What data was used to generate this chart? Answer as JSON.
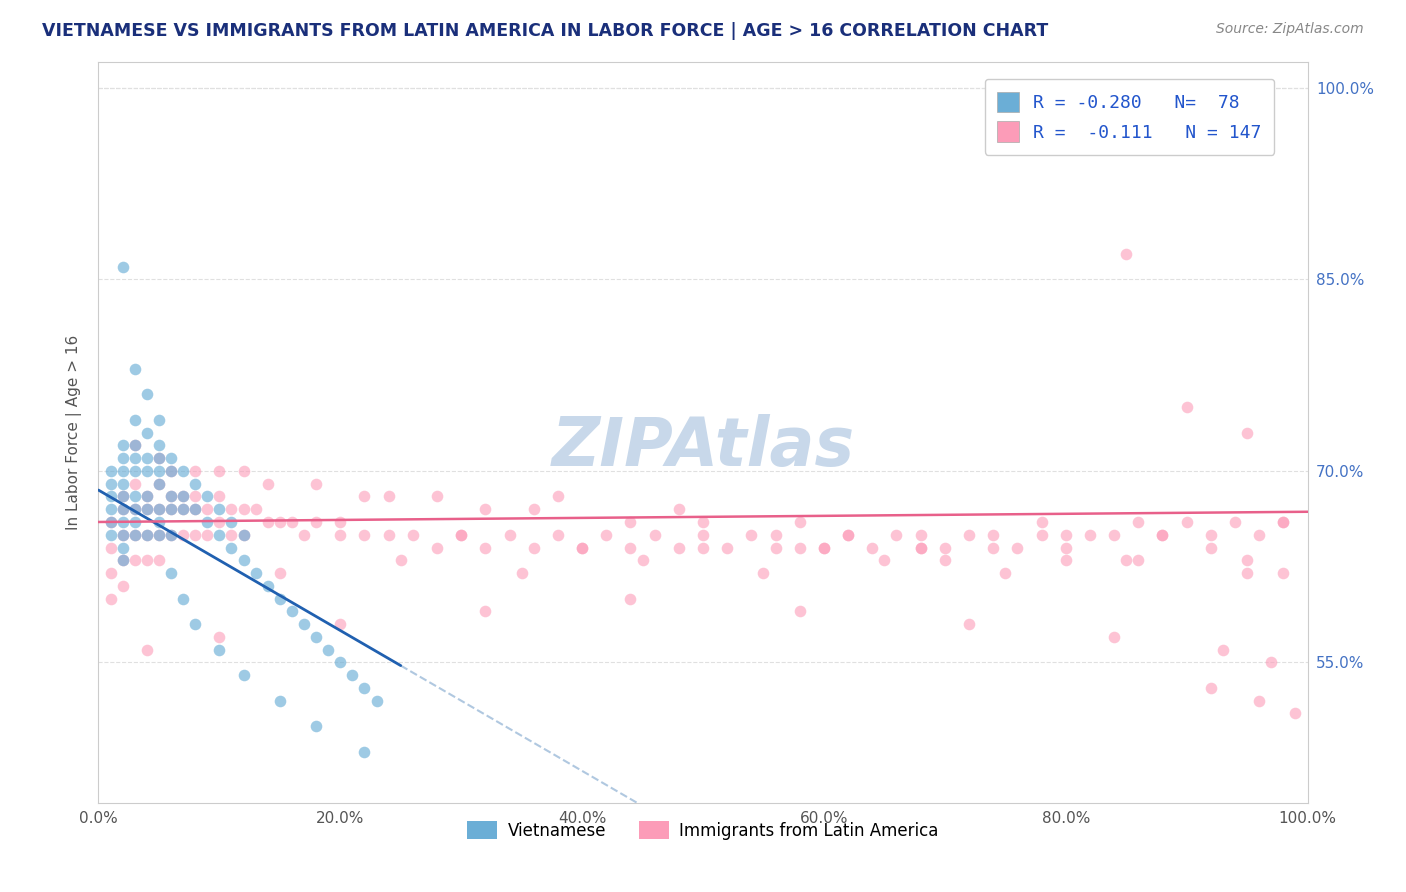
{
  "title": "VIETNAMESE VS IMMIGRANTS FROM LATIN AMERICA IN LABOR FORCE | AGE > 16 CORRELATION CHART",
  "source_text": "Source: ZipAtlas.com",
  "ylabel": "In Labor Force | Age > 16",
  "watermark": "ZIPAtlas",
  "xlim": [
    0.0,
    1.0
  ],
  "ylim": [
    0.44,
    1.02
  ],
  "xticks": [
    0.0,
    0.2,
    0.4,
    0.6,
    0.8,
    1.0
  ],
  "xtick_labels": [
    "0.0%",
    "20.0%",
    "40.0%",
    "60.0%",
    "80.0%",
    "100.0%"
  ],
  "yticks": [
    0.55,
    0.7,
    0.85,
    1.0
  ],
  "ytick_labels": [
    "55.0%",
    "70.0%",
    "85.0%",
    "100.0%"
  ],
  "legend1_label": "Vietnamese",
  "legend2_label": "Immigrants from Latin America",
  "R1": -0.28,
  "N1": 78,
  "R2": -0.111,
  "N2": 147,
  "blue_dot_color": "#6baed6",
  "pink_dot_color": "#fc9cb8",
  "blue_line_color": "#2060b0",
  "pink_line_color": "#e8608a",
  "dash_line_color": "#b0c8e0",
  "title_color": "#1a2f7a",
  "axis_color": "#cccccc",
  "grid_color": "#e0e0e0",
  "watermark_color": "#c8d8ea",
  "viet_x": [
    0.01,
    0.01,
    0.01,
    0.01,
    0.01,
    0.01,
    0.02,
    0.02,
    0.02,
    0.02,
    0.02,
    0.02,
    0.02,
    0.02,
    0.02,
    0.02,
    0.03,
    0.03,
    0.03,
    0.03,
    0.03,
    0.03,
    0.03,
    0.03,
    0.04,
    0.04,
    0.04,
    0.04,
    0.04,
    0.04,
    0.05,
    0.05,
    0.05,
    0.05,
    0.05,
    0.05,
    0.05,
    0.06,
    0.06,
    0.06,
    0.06,
    0.06,
    0.07,
    0.07,
    0.07,
    0.08,
    0.08,
    0.09,
    0.09,
    0.1,
    0.1,
    0.11,
    0.11,
    0.12,
    0.12,
    0.13,
    0.14,
    0.15,
    0.16,
    0.17,
    0.18,
    0.19,
    0.2,
    0.21,
    0.22,
    0.23,
    0.02,
    0.03,
    0.04,
    0.05,
    0.06,
    0.07,
    0.08,
    0.1,
    0.12,
    0.15,
    0.18,
    0.22
  ],
  "viet_y": [
    0.7,
    0.69,
    0.68,
    0.67,
    0.66,
    0.65,
    0.72,
    0.71,
    0.7,
    0.69,
    0.68,
    0.67,
    0.66,
    0.65,
    0.64,
    0.63,
    0.74,
    0.72,
    0.71,
    0.7,
    0.68,
    0.67,
    0.66,
    0.65,
    0.73,
    0.71,
    0.7,
    0.68,
    0.67,
    0.65,
    0.72,
    0.71,
    0.7,
    0.69,
    0.67,
    0.66,
    0.65,
    0.71,
    0.7,
    0.68,
    0.67,
    0.65,
    0.7,
    0.68,
    0.67,
    0.69,
    0.67,
    0.68,
    0.66,
    0.67,
    0.65,
    0.66,
    0.64,
    0.65,
    0.63,
    0.62,
    0.61,
    0.6,
    0.59,
    0.58,
    0.57,
    0.56,
    0.55,
    0.54,
    0.53,
    0.52,
    0.86,
    0.78,
    0.76,
    0.74,
    0.62,
    0.6,
    0.58,
    0.56,
    0.54,
    0.52,
    0.5,
    0.48
  ],
  "latin_x": [
    0.01,
    0.01,
    0.01,
    0.01,
    0.02,
    0.02,
    0.02,
    0.02,
    0.02,
    0.03,
    0.03,
    0.03,
    0.03,
    0.04,
    0.04,
    0.04,
    0.04,
    0.05,
    0.05,
    0.05,
    0.05,
    0.06,
    0.06,
    0.06,
    0.07,
    0.07,
    0.07,
    0.08,
    0.08,
    0.08,
    0.09,
    0.09,
    0.1,
    0.1,
    0.11,
    0.11,
    0.12,
    0.12,
    0.13,
    0.14,
    0.15,
    0.16,
    0.17,
    0.18,
    0.2,
    0.22,
    0.24,
    0.26,
    0.28,
    0.3,
    0.32,
    0.34,
    0.36,
    0.38,
    0.4,
    0.42,
    0.44,
    0.46,
    0.48,
    0.5,
    0.52,
    0.54,
    0.56,
    0.58,
    0.6,
    0.62,
    0.64,
    0.66,
    0.68,
    0.7,
    0.72,
    0.74,
    0.76,
    0.78,
    0.8,
    0.82,
    0.84,
    0.86,
    0.88,
    0.9,
    0.92,
    0.94,
    0.96,
    0.98,
    0.15,
    0.25,
    0.35,
    0.45,
    0.55,
    0.65,
    0.75,
    0.85,
    0.95,
    0.2,
    0.3,
    0.4,
    0.5,
    0.6,
    0.7,
    0.8,
    0.06,
    0.1,
    0.18,
    0.28,
    0.38,
    0.48,
    0.58,
    0.68,
    0.78,
    0.88,
    0.05,
    0.08,
    0.14,
    0.22,
    0.32,
    0.44,
    0.56,
    0.68,
    0.8,
    0.92,
    0.03,
    0.12,
    0.24,
    0.36,
    0.5,
    0.62,
    0.74,
    0.86,
    0.95,
    0.98,
    0.04,
    0.1,
    0.2,
    0.32,
    0.44,
    0.58,
    0.72,
    0.84,
    0.93,
    0.97,
    0.85,
    0.9,
    0.95,
    0.98,
    0.92,
    0.96,
    0.99
  ],
  "latin_y": [
    0.66,
    0.64,
    0.62,
    0.6,
    0.68,
    0.67,
    0.65,
    0.63,
    0.61,
    0.69,
    0.67,
    0.65,
    0.63,
    0.68,
    0.67,
    0.65,
    0.63,
    0.69,
    0.67,
    0.65,
    0.63,
    0.68,
    0.67,
    0.65,
    0.68,
    0.67,
    0.65,
    0.68,
    0.67,
    0.65,
    0.67,
    0.65,
    0.68,
    0.66,
    0.67,
    0.65,
    0.67,
    0.65,
    0.67,
    0.66,
    0.66,
    0.66,
    0.65,
    0.66,
    0.65,
    0.65,
    0.65,
    0.65,
    0.64,
    0.65,
    0.64,
    0.65,
    0.64,
    0.65,
    0.64,
    0.65,
    0.64,
    0.65,
    0.64,
    0.64,
    0.64,
    0.65,
    0.64,
    0.64,
    0.64,
    0.65,
    0.64,
    0.65,
    0.64,
    0.64,
    0.65,
    0.65,
    0.64,
    0.65,
    0.64,
    0.65,
    0.65,
    0.66,
    0.65,
    0.66,
    0.65,
    0.66,
    0.65,
    0.66,
    0.62,
    0.63,
    0.62,
    0.63,
    0.62,
    0.63,
    0.62,
    0.63,
    0.62,
    0.66,
    0.65,
    0.64,
    0.65,
    0.64,
    0.63,
    0.63,
    0.7,
    0.7,
    0.69,
    0.68,
    0.68,
    0.67,
    0.66,
    0.65,
    0.66,
    0.65,
    0.71,
    0.7,
    0.69,
    0.68,
    0.67,
    0.66,
    0.65,
    0.64,
    0.65,
    0.64,
    0.72,
    0.7,
    0.68,
    0.67,
    0.66,
    0.65,
    0.64,
    0.63,
    0.63,
    0.62,
    0.56,
    0.57,
    0.58,
    0.59,
    0.6,
    0.59,
    0.58,
    0.57,
    0.56,
    0.55,
    0.87,
    0.75,
    0.73,
    0.66,
    0.53,
    0.52,
    0.51
  ]
}
